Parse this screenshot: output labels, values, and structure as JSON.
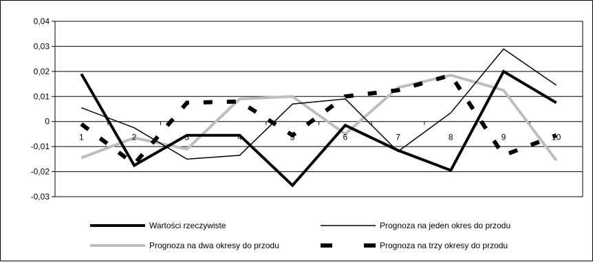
{
  "chart_data": {
    "type": "line",
    "categories": [
      "1",
      "2",
      "3",
      "4",
      "5",
      "6",
      "7",
      "8",
      "9",
      "10"
    ],
    "ylim": [
      -0.03,
      0.04
    ],
    "yticks": [
      "0,04",
      "0,03",
      "0,02",
      "0,01",
      "0",
      "-0,01",
      "-0,02",
      "-0,03"
    ],
    "ytick_values": [
      0.04,
      0.03,
      0.02,
      0.01,
      0,
      -0.01,
      -0.02,
      -0.03
    ],
    "grid": true,
    "legend_position": "bottom",
    "series": [
      {
        "name": "Wartości rzeczywiste",
        "values": [
          0.019,
          -0.0175,
          -0.0055,
          -0.0055,
          -0.0255,
          -0.0015,
          -0.0115,
          -0.0195,
          0.02,
          0.0075
        ],
        "color": "#000000",
        "style": "thick"
      },
      {
        "name": "Prognoza na jeden okres do przodu",
        "values": [
          0.0055,
          -0.0025,
          -0.015,
          -0.0135,
          0.007,
          0.009,
          -0.012,
          0.0035,
          0.029,
          0.0145
        ],
        "color": "#000000",
        "style": "thin"
      },
      {
        "name": "Prognoza na dwa okresy do przodu",
        "values": [
          -0.0145,
          -0.0065,
          -0.011,
          0.009,
          0.01,
          -0.005,
          0.0135,
          0.0185,
          0.0125,
          -0.0155
        ],
        "color": "#bdbdbd",
        "style": "thick"
      },
      {
        "name": "Prognoza na trzy okresy do przodu",
        "values": [
          -0.001,
          -0.017,
          0.0075,
          0.008,
          -0.0055,
          0.01,
          0.0125,
          0.0185,
          -0.0135,
          -0.0055
        ],
        "color": "#000000",
        "style": "dashed"
      }
    ]
  }
}
